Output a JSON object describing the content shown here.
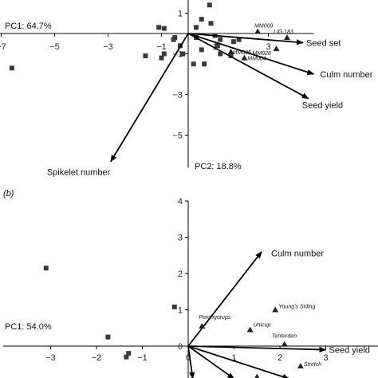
{
  "chart_data": [
    {
      "type": "scatter",
      "panel": "",
      "x_label": "PC1: 64.7%",
      "y_label": "PC2: 18.8%",
      "xlim": [
        -7,
        4.7
      ],
      "ylim": [
        -6.6,
        2.8
      ],
      "x_ticks": [
        -7,
        -5,
        -3,
        -1,
        1,
        3
      ],
      "x_tick_labels": [
        "−7",
        "−5",
        "−3",
        "−1",
        "1",
        "3"
      ],
      "y_ticks": [
        1,
        -1,
        -3,
        -5
      ],
      "y_tick_labels": [
        "1",
        "−1",
        "−3",
        "−5"
      ],
      "vectors": [
        {
          "label": "Seed set",
          "x": 4.3,
          "y": -0.45
        },
        {
          "label": "Culm number",
          "x": 4.7,
          "y": -2.0
        },
        {
          "label": "Seed yield",
          "x": 4.5,
          "y": -3.2
        },
        {
          "label": "Spikelet number",
          "x": -2.9,
          "y": -6.3
        }
      ],
      "labeled_points": [
        {
          "label": "MM009",
          "x": 2.6,
          "y": 0.1
        },
        {
          "label": "LIG 183",
          "x": 3.7,
          "y": -0.2
        },
        {
          "label": "MM028",
          "x": 3.3,
          "y": -0.75
        },
        {
          "label": "MM005",
          "x": 1.6,
          "y": -0.9
        },
        {
          "label": "MM004",
          "x": 2.1,
          "y": -1.2
        }
      ],
      "squares": [
        {
          "x": -2.7,
          "y": 2.7
        },
        {
          "x": -2.0,
          "y": 2.6
        },
        {
          "x": 0.9,
          "y": 2.6
        },
        {
          "x": 1.7,
          "y": 2.5
        },
        {
          "x": -2.8,
          "y": 2.3
        },
        {
          "x": 0.8,
          "y": 1.4
        },
        {
          "x": 0.5,
          "y": 0.7
        },
        {
          "x": 0.85,
          "y": 0.5
        },
        {
          "x": -1.1,
          "y": 0.3
        },
        {
          "x": -0.9,
          "y": 0.25
        },
        {
          "x": 0.3,
          "y": 0.3
        },
        {
          "x": -0.55,
          "y": -0.3
        },
        {
          "x": -0.3,
          "y": -0.6
        },
        {
          "x": -0.2,
          "y": -1.0
        },
        {
          "x": 0.5,
          "y": -0.8
        },
        {
          "x": -0.9,
          "y": -1.0
        },
        {
          "x": 0.6,
          "y": -1.5
        },
        {
          "x": 0.2,
          "y": -1.5
        },
        {
          "x": 1.1,
          "y": -0.6
        },
        {
          "x": 1.2,
          "y": -1.0
        },
        {
          "x": 1.6,
          "y": -1.1
        },
        {
          "x": 1.9,
          "y": -0.3
        },
        {
          "x": 1.7,
          "y": -0.4
        },
        {
          "x": 1.2,
          "y": -0.3
        },
        {
          "x": 1.0,
          "y": -0.1
        },
        {
          "x": -1.6,
          "y": -1.1
        },
        {
          "x": -1.0,
          "y": -1.2
        },
        {
          "x": -6.6,
          "y": -1.7
        },
        {
          "x": 0.3,
          "y": -0.2
        },
        {
          "x": -0.5,
          "y": -0.2
        }
      ]
    },
    {
      "type": "scatter",
      "panel": "(b)",
      "x_label": "PC1: 54.0%",
      "y_label": "",
      "xlim": [
        -4.0,
        5.3
      ],
      "ylim": [
        -0.9,
        4.0
      ],
      "x_ticks": [
        -3,
        -2,
        -1,
        0,
        1,
        2,
        3
      ],
      "x_tick_labels": [
        "−3",
        "−2",
        "−1",
        "0",
        "1",
        "2",
        "3"
      ],
      "y_ticks": [
        0,
        1,
        2,
        3,
        4
      ],
      "y_tick_labels": [
        "0",
        "1",
        "2",
        "3",
        "4"
      ],
      "vectors": [
        {
          "label": "Culm number",
          "x": 1.6,
          "y": 2.6
        },
        {
          "label": "Seed yield",
          "x": 3.0,
          "y": -0.1
        },
        {
          "label": "",
          "x": 2.2,
          "y": -0.9
        },
        {
          "label": "",
          "x": 1.0,
          "y": -0.9
        },
        {
          "label": "",
          "x": 0.1,
          "y": -0.9
        }
      ],
      "labeled_points": [
        {
          "label": "Young's Siding",
          "x": 1.9,
          "y": 1.0
        },
        {
          "label": "Porongorups",
          "x": 0.3,
          "y": 0.55
        },
        {
          "label": "Unicup",
          "x": 1.35,
          "y": 0.45
        },
        {
          "label": "Tenterden",
          "x": 2.1,
          "y": 0.05
        },
        {
          "label": "Stretch",
          "x": 2.45,
          "y": -0.55
        },
        {
          "label": "",
          "x": 1.5,
          "y": -0.85
        }
      ],
      "squares": [
        {
          "x": -3.1,
          "y": 2.15
        },
        {
          "x": -1.75,
          "y": 0.25
        },
        {
          "x": -1.3,
          "y": -0.2
        },
        {
          "x": -1.35,
          "y": -0.3
        },
        {
          "x": -0.3,
          "y": 1.08
        }
      ]
    }
  ]
}
